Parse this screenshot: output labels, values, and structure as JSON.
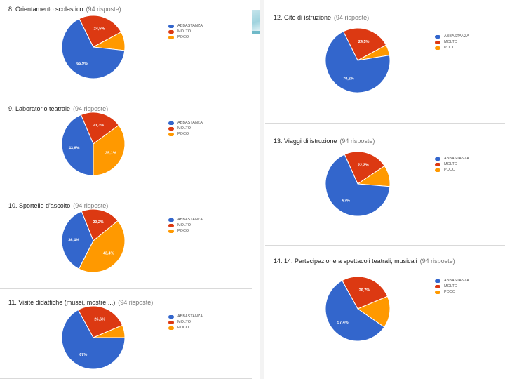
{
  "legend": [
    "ABBASTANZA",
    "MOLTO",
    "POCO"
  ],
  "colors": {
    "blue": "#3366cc",
    "red": "#dc3912",
    "orange": "#ff9900"
  },
  "chart_data": [
    {
      "type": "pie",
      "title": "8. Orientamento scolastico",
      "responses": "(94 risposte)",
      "categories": [
        "ABBASTANZA",
        "MOLTO",
        "POCO"
      ],
      "values": [
        65.9,
        24.5,
        9.6
      ],
      "labels": [
        "65,9%",
        "24,5%",
        ""
      ]
    },
    {
      "type": "pie",
      "title": "9. Laboratorio teatrale",
      "responses": "(94 risposte)",
      "categories": [
        "ABBASTANZA",
        "MOLTO",
        "POCO"
      ],
      "values": [
        43.6,
        21.3,
        35.1
      ],
      "labels": [
        "43,6%",
        "21,3%",
        "35,1%"
      ]
    },
    {
      "type": "pie",
      "title": "10. Sportello d'ascolto",
      "responses": "(94 risposte)",
      "categories": [
        "ABBASTANZA",
        "MOLTO",
        "POCO"
      ],
      "values": [
        36.4,
        20.2,
        43.4
      ],
      "labels": [
        "36,4%",
        "20,2%",
        "43,4%"
      ]
    },
    {
      "type": "pie",
      "title": "11. Visite didattiche (musei, mostre ...)",
      "responses": "(94 risposte)",
      "categories": [
        "ABBASTANZA",
        "MOLTO",
        "POCO"
      ],
      "values": [
        67,
        26.6,
        6.4
      ],
      "labels": [
        "67%",
        "26,6%",
        ""
      ]
    },
    {
      "type": "pie",
      "title": "12. Gite di istruzione",
      "responses": "(94 risposte)",
      "categories": [
        "ABBASTANZA",
        "MOLTO",
        "POCO"
      ],
      "values": [
        70.2,
        24.5,
        5.3
      ],
      "labels": [
        "70,2%",
        "24,5%",
        ""
      ]
    },
    {
      "type": "pie",
      "title": "13. Viaggi di istruzione",
      "responses": "(94 risposte)",
      "categories": [
        "ABBASTANZA",
        "MOLTO",
        "POCO"
      ],
      "values": [
        67,
        22.3,
        10.7
      ],
      "labels": [
        "67%",
        "22,3%",
        ""
      ]
    },
    {
      "type": "pie",
      "title": "14. 14. Partecipazione a spettacoli teatrali, musicali",
      "responses": "(94 risposte)",
      "categories": [
        "ABBASTANZA",
        "MOLTO",
        "POCO"
      ],
      "values": [
        57.4,
        26.7,
        15.9
      ],
      "labels": [
        "57,4%",
        "26,7%",
        ""
      ]
    }
  ]
}
